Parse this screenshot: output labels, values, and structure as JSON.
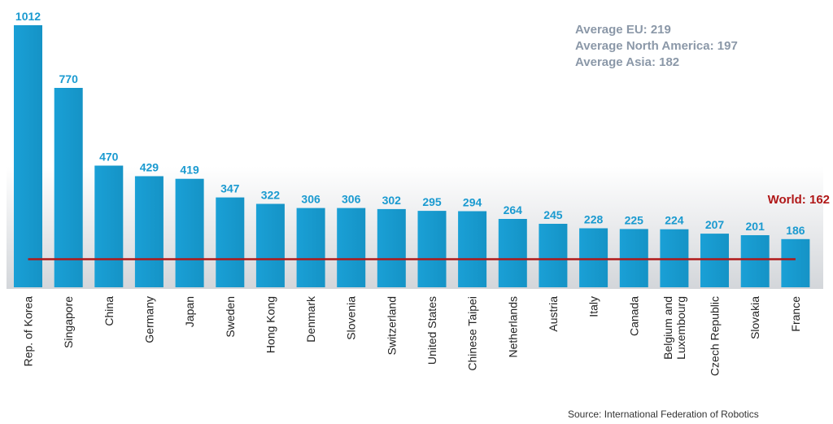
{
  "chart_data": {
    "type": "bar",
    "categories": [
      "Rep. of Korea",
      "Singapore",
      "China",
      "Germany",
      "Japan",
      "Sweden",
      "Hong Kong",
      "Denmark",
      "Slovenia",
      "Switzerland",
      "United States",
      "Chinese Taipei",
      "Netherlands",
      "Austria",
      "Italy",
      "Canada",
      "Belgium and Luxembourg",
      "Czech Republic",
      "Slovakia",
      "France"
    ],
    "values": [
      1012,
      770,
      470,
      429,
      419,
      347,
      322,
      306,
      306,
      302,
      295,
      294,
      264,
      245,
      228,
      225,
      224,
      207,
      201,
      186
    ],
    "value_labels": [
      "1012",
      "770",
      "470",
      "429",
      "419",
      "347",
      "322",
      "306",
      "306",
      "302",
      "295",
      "294",
      "264",
      "245",
      "228",
      "225",
      "224",
      "207",
      "201",
      "186"
    ],
    "reference_line": {
      "label": "World: 162",
      "value": 162,
      "color": "#b01818"
    },
    "annotations": [
      "Average EU: 219",
      "Average North America: 197",
      "Average Asia: 182"
    ],
    "ylim": [
      0,
      1012
    ],
    "grid": false,
    "bar_color": "#1aa0d6",
    "label_color": "#1a9ad0"
  },
  "source": "Source: International Federation of Robotics"
}
